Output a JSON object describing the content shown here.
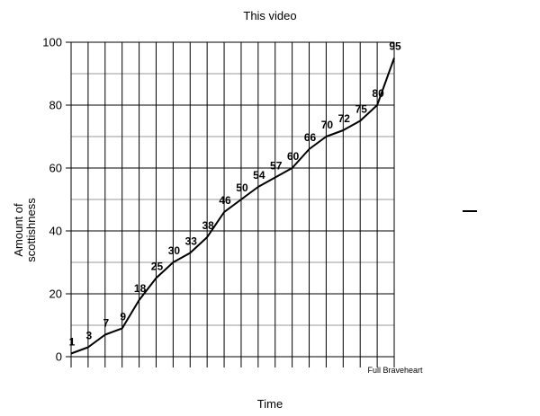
{
  "chart_data": {
    "type": "line",
    "title": "This video",
    "xlabel": "Time",
    "ylabel": "Amount of scottishness",
    "x_last_label": "Full Braveheart",
    "ylim": [
      0,
      100
    ],
    "yticks": [
      "0",
      "20",
      "40",
      "60",
      "80",
      "100"
    ],
    "grid": true,
    "values": [
      1,
      3,
      7,
      9,
      18,
      25,
      30,
      33,
      38,
      46,
      50,
      54,
      57,
      60,
      66,
      70,
      72,
      75,
      80,
      95
    ],
    "value_labels": [
      "1",
      "3",
      "7",
      "9",
      "18",
      "25",
      "30",
      "33",
      "38",
      "46",
      "50",
      "54",
      "57",
      "60",
      "66",
      "70",
      "72",
      "75",
      "80",
      "95"
    ]
  },
  "side_mark": "–"
}
